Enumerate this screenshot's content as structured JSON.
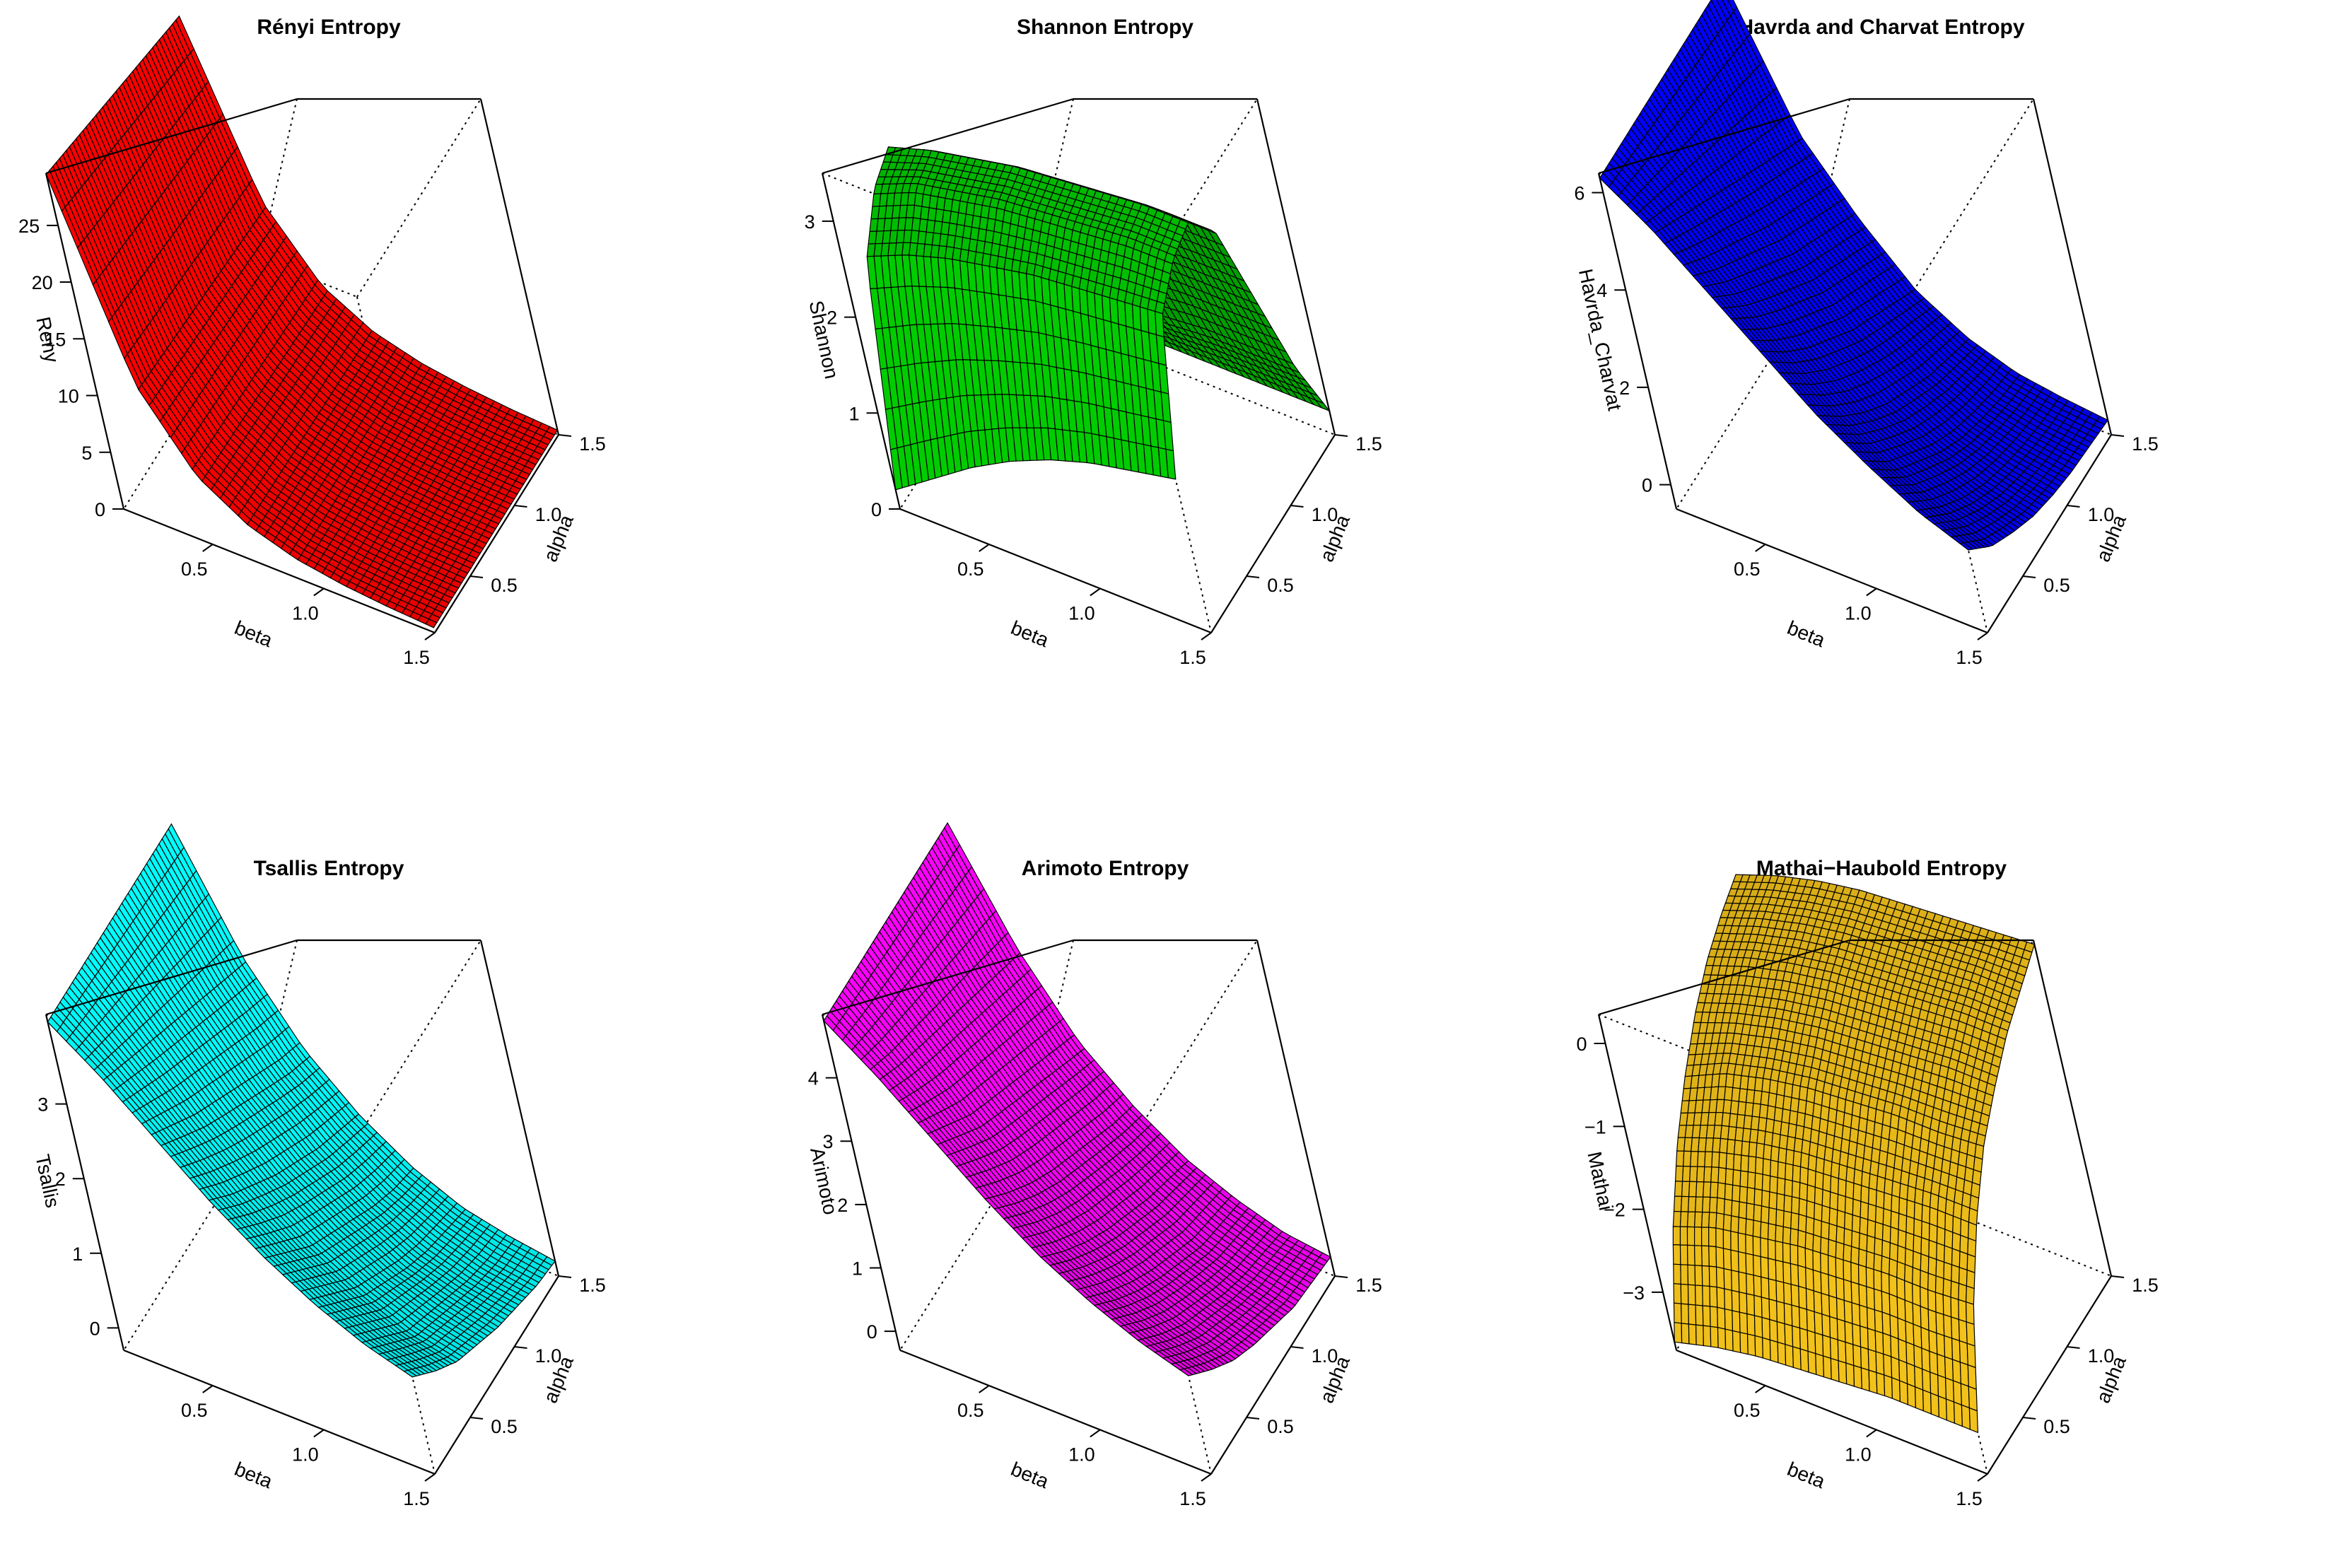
{
  "chart_data": [
    {
      "type": "surface3d",
      "title": "Rényi Entropy",
      "xlabel": "beta",
      "ylabel": "alpha",
      "zlabel": "Reny",
      "xlim": [
        0.1,
        1.5
      ],
      "ylim": [
        0.1,
        1.5
      ],
      "zlim": [
        0,
        29.6
      ],
      "xticks": [
        "0.5",
        "1.0",
        "1.5"
      ],
      "xtick_values": [
        0.5,
        1.0,
        1.5
      ],
      "yticks": [
        "0.5",
        "1.0",
        "1.5"
      ],
      "ytick_values": [
        0.5,
        1.0,
        1.5
      ],
      "zticks": [
        "0",
        "5",
        "10",
        "15",
        "20",
        "25"
      ],
      "ztick_values": [
        0,
        5,
        10,
        15,
        20,
        25
      ],
      "color": "#ff0000",
      "x": [
        0.1,
        0.3,
        0.5,
        0.7,
        0.9,
        1.1,
        1.3,
        1.5
      ],
      "y": [
        0.1,
        0.3,
        0.5,
        0.7,
        0.9,
        1.1,
        1.3,
        1.5
      ],
      "z": [
        [
          29.5,
          29.0,
          28.5,
          28.0,
          27.5,
          27.0,
          26.5,
          26.0
        ],
        [
          12.5,
          12.3,
          12.1,
          11.9,
          11.7,
          11.5,
          11.3,
          11.1
        ],
        [
          6.0,
          5.9,
          5.8,
          5.7,
          5.6,
          5.5,
          5.4,
          5.3
        ],
        [
          3.2,
          3.15,
          3.1,
          3.05,
          3.0,
          2.95,
          2.9,
          2.85
        ],
        [
          1.8,
          1.78,
          1.76,
          1.74,
          1.72,
          1.7,
          1.68,
          1.66
        ],
        [
          1.1,
          1.09,
          1.08,
          1.07,
          1.06,
          1.05,
          1.04,
          1.03
        ],
        [
          0.7,
          0.69,
          0.68,
          0.67,
          0.66,
          0.65,
          0.64,
          0.63
        ],
        [
          0.45,
          0.44,
          0.44,
          0.43,
          0.43,
          0.42,
          0.42,
          0.41
        ]
      ]
    },
    {
      "type": "surface3d",
      "title": "Shannon Entropy",
      "xlabel": "beta",
      "ylabel": "alpha",
      "zlabel": "Shannon",
      "xlim": [
        0.1,
        1.5
      ],
      "ylim": [
        0.1,
        1.5
      ],
      "zlim": [
        0,
        3.5
      ],
      "xticks": [
        "0.5",
        "1.0",
        "1.5"
      ],
      "xtick_values": [
        0.5,
        1.0,
        1.5
      ],
      "yticks": [
        "0.5",
        "1.0",
        "1.5"
      ],
      "ytick_values": [
        0.5,
        1.0,
        1.5
      ],
      "zticks": [
        "0",
        "1",
        "2",
        "3"
      ],
      "ztick_values": [
        0,
        1,
        2,
        3
      ],
      "color": "#00cc00",
      "x": [
        0.1,
        0.3,
        0.5,
        0.7,
        0.9,
        1.1,
        1.3,
        1.5
      ],
      "y": [
        0.1,
        0.3,
        0.5,
        0.7,
        0.9,
        1.1,
        1.3,
        1.5
      ],
      "z": [
        [
          0.2,
          2.3,
          2.75,
          2.9,
          2.5,
          1.7,
          0.8,
          0.2
        ],
        [
          0.5,
          2.5,
          2.95,
          3.05,
          2.65,
          1.8,
          0.85,
          0.25
        ],
        [
          0.8,
          2.65,
          3.05,
          3.15,
          2.75,
          1.85,
          0.9,
          0.25
        ],
        [
          1.05,
          2.75,
          3.15,
          3.25,
          2.85,
          1.9,
          0.95,
          0.25
        ],
        [
          1.25,
          2.85,
          3.2,
          3.3,
          2.9,
          1.95,
          0.95,
          0.25
        ],
        [
          1.4,
          2.9,
          3.25,
          3.35,
          2.95,
          2.0,
          1.0,
          0.25
        ],
        [
          1.5,
          2.95,
          3.3,
          3.4,
          3.0,
          2.0,
          1.0,
          0.25
        ],
        [
          1.6,
          3.0,
          3.3,
          3.4,
          3.0,
          2.0,
          1.0,
          0.25
        ]
      ]
    },
    {
      "type": "surface3d",
      "title": "Havrda and Charvat Entropy",
      "xlabel": "beta",
      "ylabel": "alpha",
      "zlabel": "Havrda_Charvat",
      "xlim": [
        0.1,
        1.5
      ],
      "ylim": [
        0.1,
        1.5
      ],
      "zlim": [
        -0.5,
        6.4
      ],
      "xticks": [
        "0.5",
        "1.0",
        "1.5"
      ],
      "xtick_values": [
        0.5,
        1.0,
        1.5
      ],
      "yticks": [
        "0.5",
        "1.0",
        "1.5"
      ],
      "ytick_values": [
        0.5,
        1.0,
        1.5
      ],
      "zticks": [
        "0",
        "2",
        "4",
        "6"
      ],
      "ztick_values": [
        0,
        2,
        4,
        6
      ],
      "color": "#0000ff",
      "x": [
        0.1,
        0.3,
        0.5,
        0.7,
        0.9,
        1.1,
        1.3,
        1.5
      ],
      "y": [
        0.1,
        0.3,
        0.5,
        0.7,
        0.9,
        1.1,
        1.3,
        1.5
      ],
      "z": [
        [
          6.3,
          6.3,
          6.3,
          6.3,
          6.3,
          6.3,
          6.3,
          6.3
        ],
        [
          5.6,
          5.3,
          5.0,
          4.7,
          4.4,
          4.1,
          3.8,
          3.5
        ],
        [
          4.7,
          4.2,
          3.8,
          3.4,
          3.0,
          2.7,
          2.4,
          2.1
        ],
        [
          3.8,
          3.2,
          2.7,
          2.3,
          1.9,
          1.6,
          1.3,
          1.0
        ],
        [
          2.9,
          2.3,
          1.8,
          1.4,
          1.1,
          0.8,
          0.6,
          0.4
        ],
        [
          2.2,
          1.6,
          1.2,
          0.8,
          0.5,
          0.3,
          0.15,
          0.05
        ],
        [
          1.6,
          1.1,
          0.7,
          0.4,
          0.2,
          0.05,
          -0.05,
          -0.1
        ],
        [
          1.2,
          0.7,
          0.4,
          0.15,
          0.0,
          -0.1,
          -0.15,
          -0.2
        ]
      ]
    },
    {
      "type": "surface3d",
      "title": "Tsallis Entropy",
      "xlabel": "beta",
      "ylabel": "alpha",
      "zlabel": "Tsallis",
      "xlim": [
        0.1,
        1.5
      ],
      "ylim": [
        0.1,
        1.5
      ],
      "zlim": [
        -0.3,
        4.2
      ],
      "xticks": [
        "0.5",
        "1.0",
        "1.5"
      ],
      "xtick_values": [
        0.5,
        1.0,
        1.5
      ],
      "yticks": [
        "0.5",
        "1.0",
        "1.5"
      ],
      "ytick_values": [
        0.5,
        1.0,
        1.5
      ],
      "zticks": [
        "0",
        "1",
        "2",
        "3"
      ],
      "ztick_values": [
        0,
        1,
        2,
        3
      ],
      "color": "#00ffff",
      "x": [
        0.1,
        0.3,
        0.5,
        0.7,
        0.9,
        1.1,
        1.3,
        1.5
      ],
      "y": [
        0.1,
        0.3,
        0.5,
        0.7,
        0.9,
        1.1,
        1.3,
        1.5
      ],
      "z": [
        [
          4.1,
          4.1,
          4.1,
          4.1,
          4.1,
          4.1,
          4.1,
          4.1
        ],
        [
          3.6,
          3.45,
          3.3,
          3.15,
          3.0,
          2.85,
          2.7,
          2.55
        ],
        [
          3.0,
          2.75,
          2.5,
          2.3,
          2.1,
          1.9,
          1.7,
          1.55
        ],
        [
          2.4,
          2.1,
          1.85,
          1.6,
          1.4,
          1.2,
          1.05,
          0.9
        ],
        [
          1.9,
          1.6,
          1.3,
          1.1,
          0.9,
          0.7,
          0.55,
          0.45
        ],
        [
          1.5,
          1.2,
          0.9,
          0.7,
          0.5,
          0.35,
          0.25,
          0.15
        ],
        [
          1.2,
          0.9,
          0.6,
          0.45,
          0.3,
          0.15,
          0.05,
          0.0
        ],
        [
          1.0,
          0.7,
          0.45,
          0.3,
          0.15,
          0.05,
          -0.05,
          -0.1
        ]
      ]
    },
    {
      "type": "surface3d",
      "title": "Arimoto Entropy",
      "xlabel": "beta",
      "ylabel": "alpha",
      "zlabel": "Arimoto",
      "xlim": [
        0.1,
        1.5
      ],
      "ylim": [
        0.1,
        1.5
      ],
      "zlim": [
        -0.3,
        5.0
      ],
      "xticks": [
        "0.5",
        "1.0",
        "1.5"
      ],
      "xtick_values": [
        0.5,
        1.0,
        1.5
      ],
      "yticks": [
        "0.5",
        "1.0",
        "1.5"
      ],
      "ytick_values": [
        0.5,
        1.0,
        1.5
      ],
      "zticks": [
        "0",
        "1",
        "2",
        "3",
        "4"
      ],
      "ztick_values": [
        0,
        1,
        2,
        3,
        4
      ],
      "color": "#ff00ff",
      "x": [
        0.1,
        0.3,
        0.5,
        0.7,
        0.9,
        1.1,
        1.3,
        1.5
      ],
      "y": [
        0.1,
        0.3,
        0.5,
        0.7,
        0.9,
        1.1,
        1.3,
        1.5
      ],
      "z": [
        [
          4.9,
          4.9,
          4.9,
          4.9,
          4.9,
          4.9,
          4.9,
          4.9
        ],
        [
          4.3,
          4.1,
          3.95,
          3.8,
          3.65,
          3.5,
          3.35,
          3.2
        ],
        [
          3.6,
          3.3,
          3.0,
          2.8,
          2.6,
          2.4,
          2.2,
          2.0
        ],
        [
          2.9,
          2.55,
          2.25,
          2.0,
          1.8,
          1.6,
          1.4,
          1.25
        ],
        [
          2.3,
          1.95,
          1.65,
          1.4,
          1.2,
          1.0,
          0.85,
          0.7
        ],
        [
          1.85,
          1.5,
          1.2,
          0.95,
          0.75,
          0.55,
          0.45,
          0.35
        ],
        [
          1.5,
          1.15,
          0.85,
          0.65,
          0.45,
          0.3,
          0.2,
          0.1
        ],
        [
          1.25,
          0.9,
          0.6,
          0.4,
          0.25,
          0.1,
          0.05,
          0.0
        ]
      ]
    },
    {
      "type": "surface3d",
      "title": "Mathai−Haubold Entropy",
      "xlabel": "beta",
      "ylabel": "alpha",
      "zlabel": "Mathai",
      "xlim": [
        0.1,
        1.5
      ],
      "ylim": [
        0.1,
        1.5
      ],
      "zlim": [
        -3.7,
        0.35
      ],
      "xticks": [
        "0.5",
        "1.0",
        "1.5"
      ],
      "xtick_values": [
        0.5,
        1.0,
        1.5
      ],
      "yticks": [
        "0.5",
        "1.0",
        "1.5"
      ],
      "ytick_values": [
        0.5,
        1.0,
        1.5
      ],
      "zticks": [
        "−3",
        "−2",
        "−1",
        "0"
      ],
      "ztick_values": [
        -3,
        -2,
        -1,
        0
      ],
      "color": "#f2c21a",
      "x": [
        0.1,
        0.3,
        0.5,
        0.7,
        0.9,
        1.1,
        1.3,
        1.5
      ],
      "y": [
        0.1,
        0.3,
        0.5,
        0.7,
        0.9,
        1.1,
        1.3,
        1.5
      ],
      "z": [
        [
          -3.6,
          -2.6,
          -1.9,
          -1.4,
          -1.0,
          -0.7,
          -0.5,
          -0.35
        ],
        [
          -3.45,
          -2.4,
          -1.7,
          -1.15,
          -0.8,
          -0.5,
          -0.3,
          -0.15
        ],
        [
          -3.35,
          -2.3,
          -1.55,
          -1.0,
          -0.65,
          -0.35,
          -0.15,
          0.0
        ],
        [
          -3.3,
          -2.2,
          -1.45,
          -0.9,
          -0.55,
          -0.25,
          -0.05,
          0.1
        ],
        [
          -3.25,
          -2.15,
          -1.4,
          -0.85,
          -0.5,
          -0.2,
          0.0,
          0.15
        ],
        [
          -3.2,
          -2.1,
          -1.35,
          -0.8,
          -0.45,
          -0.15,
          0.05,
          0.2
        ],
        [
          -3.2,
          -2.1,
          -1.3,
          -0.8,
          -0.4,
          -0.1,
          0.1,
          0.25
        ],
        [
          -3.2,
          -2.05,
          -1.3,
          -0.75,
          -0.4,
          -0.1,
          0.1,
          0.3
        ]
      ]
    }
  ]
}
